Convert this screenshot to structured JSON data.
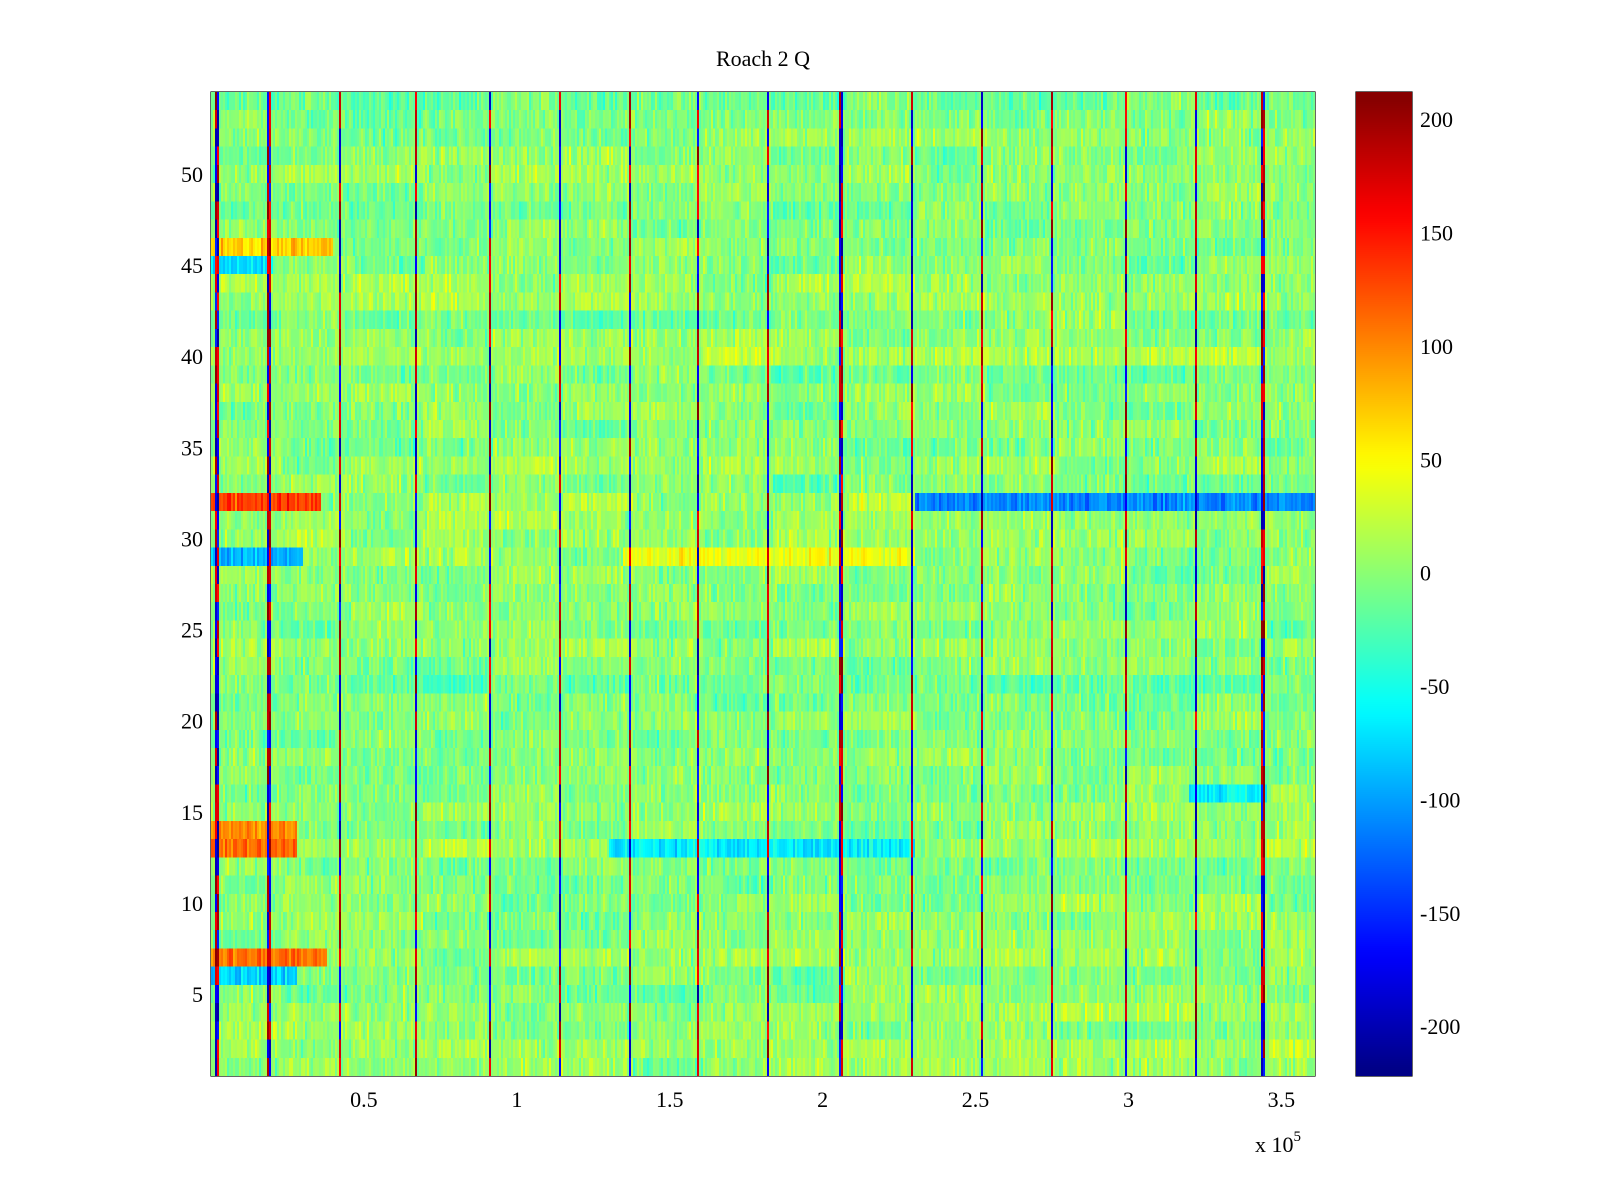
{
  "chart_data": {
    "type": "heatmap",
    "title": "Roach 2 Q",
    "xlabel": "",
    "ylabel": "",
    "x_multiplier_label": "x 10",
    "x_multiplier_exponent": "5",
    "xlim": [
      0,
      361000
    ],
    "ylim": [
      0.5,
      54.5
    ],
    "x_ticks": [
      0.5,
      1,
      1.5,
      2,
      2.5,
      3,
      3.5
    ],
    "x_tick_labels": [
      "0.5",
      "1",
      "1.5",
      "2",
      "2.5",
      "3",
      "3.5"
    ],
    "y_ticks": [
      5,
      10,
      15,
      20,
      25,
      30,
      35,
      40,
      45,
      50
    ],
    "y_tick_labels": [
      "5",
      "10",
      "15",
      "20",
      "25",
      "30",
      "35",
      "40",
      "45",
      "50"
    ],
    "colormap": "jet",
    "clim": [
      -222,
      212
    ],
    "colorbar_ticks": [
      200,
      150,
      100,
      50,
      0,
      -50,
      -100,
      -150,
      -200
    ],
    "colorbar_tick_labels": [
      "200",
      "150",
      "100",
      "50",
      "0",
      "-50",
      "-100",
      "-150",
      "-200"
    ],
    "rows": 54,
    "value_range_typical": [
      -60,
      60
    ],
    "vertical_spike_lines_x": [
      2000,
      19000,
      42000,
      67000,
      91000,
      114000,
      137000,
      159000,
      182000,
      206000,
      229000,
      252000,
      275000,
      299000,
      322000,
      344000
    ],
    "notable_bands": [
      {
        "row": 32,
        "x_range": [
          0,
          36000
        ],
        "value": 130
      },
      {
        "row": 32,
        "x_range": [
          230000,
          361000
        ],
        "value": -110
      },
      {
        "row": 29,
        "x_range": [
          0,
          30000
        ],
        "value": -90
      },
      {
        "row": 29,
        "x_range": [
          135000,
          230000
        ],
        "value": 45
      },
      {
        "row": 13,
        "x_range": [
          0,
          28000
        ],
        "value": 110
      },
      {
        "row": 14,
        "x_range": [
          0,
          28000
        ],
        "value": 95
      },
      {
        "row": 7,
        "x_range": [
          0,
          38000
        ],
        "value": 110
      },
      {
        "row": 6,
        "x_range": [
          0,
          28000
        ],
        "value": -75
      },
      {
        "row": 46,
        "x_range": [
          0,
          40000
        ],
        "value": 70
      },
      {
        "row": 45,
        "x_range": [
          0,
          20000
        ],
        "value": -70
      },
      {
        "row": 13,
        "x_range": [
          130000,
          230000
        ],
        "value": -65
      },
      {
        "row": 16,
        "x_range": [
          320000,
          345000
        ],
        "value": -60
      }
    ]
  }
}
